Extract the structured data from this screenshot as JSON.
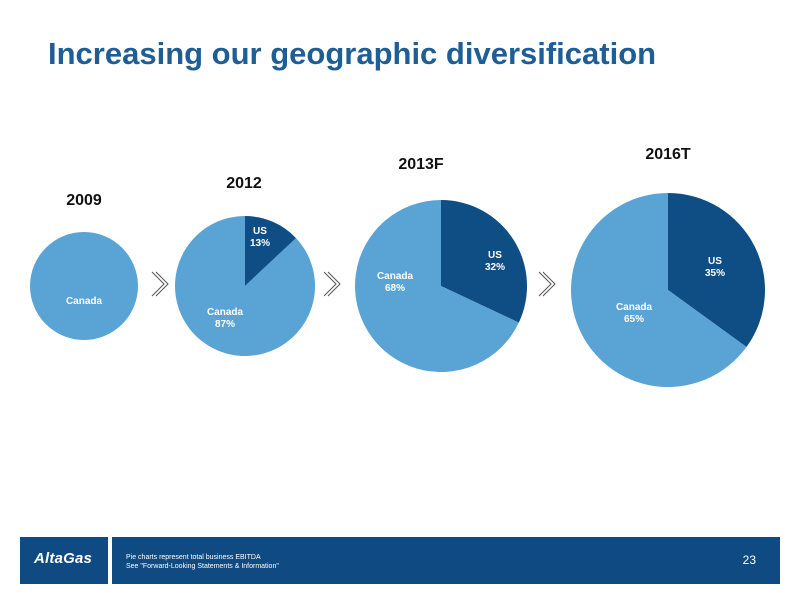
{
  "page": {
    "title": "Increasing our geographic diversification",
    "page_number": "23"
  },
  "footer": {
    "logo_text": "AltaGas",
    "note_line1": "Pie charts represent total business EBITDA",
    "note_line2": "See \"Forward-Looking Statements & Information\""
  },
  "colors": {
    "title": "#1f5d95",
    "canada": "#5aa3d5",
    "us": "#0f4d85",
    "footer": "#0f4a82"
  },
  "chart_data": [
    {
      "type": "pie",
      "title": "2009",
      "categories": [
        "Canada"
      ],
      "values": [
        100
      ],
      "labels": [
        [
          "Canada"
        ]
      ]
    },
    {
      "type": "pie",
      "title": "2012",
      "categories": [
        "US",
        "Canada"
      ],
      "values": [
        13,
        87
      ],
      "labels": [
        [
          "US",
          "13%"
        ],
        [
          "Canada",
          "87%"
        ]
      ]
    },
    {
      "type": "pie",
      "title": "2013F",
      "categories": [
        "US",
        "Canada"
      ],
      "values": [
        32,
        68
      ],
      "labels": [
        [
          "US",
          "32%"
        ],
        [
          "Canada",
          "68%"
        ]
      ]
    },
    {
      "type": "pie",
      "title": "2016T",
      "categories": [
        "US",
        "Canada"
      ],
      "values": [
        35,
        65
      ],
      "labels": [
        [
          "US",
          "35%"
        ],
        [
          "Canada",
          "65%"
        ]
      ]
    }
  ]
}
